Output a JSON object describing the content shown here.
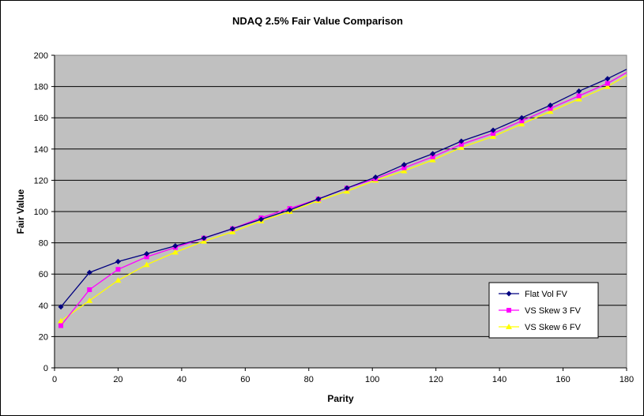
{
  "chart_data": {
    "type": "line",
    "title": "NDAQ 2.5% Fair Value Comparison",
    "xlabel": "Parity",
    "ylabel": "Fair Value",
    "xlim": [
      0,
      180
    ],
    "ylim": [
      0,
      200
    ],
    "xticks": [
      "0",
      "20",
      "40",
      "60",
      "80",
      "100",
      "120",
      "140",
      "160",
      "180"
    ],
    "yticks": [
      "0",
      "20",
      "40",
      "60",
      "80",
      "100",
      "120",
      "140",
      "160",
      "180",
      "200"
    ],
    "grid": "horizontal",
    "plot_background": "#c0c0c0",
    "legend_position": "bottom-right",
    "series": [
      {
        "name": "Flat Vol FV",
        "color": "#000080",
        "marker": "diamond",
        "x": [
          2,
          11,
          20,
          29,
          38,
          47,
          56,
          65,
          74,
          83,
          92,
          101,
          110,
          119,
          128,
          138,
          147,
          156,
          165,
          174,
          180
        ],
        "y": [
          39,
          61,
          68,
          73,
          78,
          83,
          89,
          95,
          101,
          108,
          115,
          122,
          130,
          137,
          145,
          152,
          160,
          168,
          177,
          185,
          191
        ]
      },
      {
        "name": "VS Skew 3 FV",
        "color": "#ff00ff",
        "marker": "square",
        "x": [
          2,
          11,
          20,
          29,
          38,
          47,
          56,
          65,
          74,
          83,
          92,
          101,
          110,
          119,
          128,
          138,
          147,
          156,
          165,
          174,
          180
        ],
        "y": [
          27,
          50,
          63,
          71,
          77,
          83,
          89,
          96,
          102,
          108,
          115,
          121,
          128,
          135,
          143,
          150,
          158,
          166,
          174,
          182,
          189
        ]
      },
      {
        "name": "VS Skew 6 FV",
        "color": "#ffff00",
        "marker": "triangle",
        "x": [
          2,
          11,
          20,
          29,
          38,
          47,
          56,
          65,
          74,
          83,
          92,
          101,
          110,
          119,
          128,
          138,
          147,
          156,
          165,
          174,
          180
        ],
        "y": [
          30,
          43,
          56,
          66,
          74,
          81,
          87,
          94,
          100,
          107,
          113,
          120,
          126,
          133,
          141,
          148,
          156,
          164,
          172,
          180,
          187
        ]
      }
    ]
  }
}
